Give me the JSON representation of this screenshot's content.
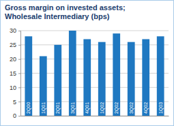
{
  "chart_data": {
    "type": "bar",
    "title": [
      "Gross margin on invested assets;",
      "Wholesale Intermediary (bps)"
    ],
    "categories": [
      "2Q00",
      "1Q01",
      "2Q01",
      "3Q01",
      "4Q01",
      "1Q02",
      "2Q02",
      "3Q02",
      "4Q02",
      "1Q03"
    ],
    "values": [
      28,
      21,
      25,
      30,
      27,
      26,
      29,
      26,
      27,
      28
    ],
    "color": "#1f78c1",
    "ylim": [
      0,
      30
    ],
    "yticks": [
      0,
      5,
      10,
      15,
      20,
      25,
      30
    ],
    "grid": true
  }
}
